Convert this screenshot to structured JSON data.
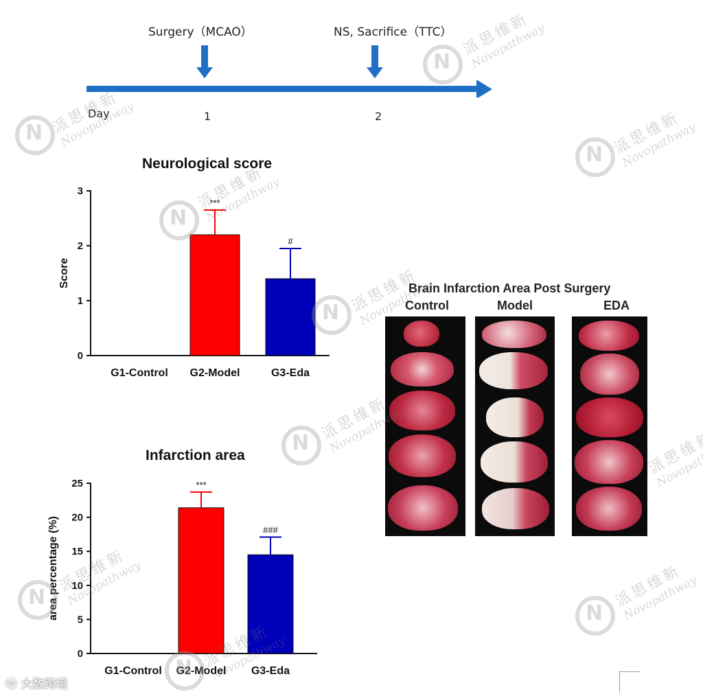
{
  "timeline": {
    "events": [
      {
        "label": "Surgery（MCAO）",
        "day": "1"
      },
      {
        "label": "NS, Sacrifice（TTC）",
        "day": "2"
      }
    ],
    "axis_label": "Day",
    "color": "#1f6fc5"
  },
  "chart_data": [
    {
      "type": "bar",
      "title": "Neurological score",
      "xlabel": "",
      "ylabel": "Score",
      "categories": [
        "G1-Control",
        "G2-Model",
        "G3-Eda"
      ],
      "values": [
        0,
        2.2,
        1.4
      ],
      "errors": [
        0,
        0.45,
        0.55
      ],
      "annotations": [
        "",
        "***",
        "#"
      ],
      "colors": [
        "#ff0000",
        "#ff0000",
        "#0000b8"
      ],
      "ylim": [
        0,
        3
      ],
      "yticks": [
        "0",
        "1",
        "2",
        "3"
      ],
      "grid": false
    },
    {
      "type": "bar",
      "title": "Infarction area",
      "xlabel": "",
      "ylabel": "area percentage (%)",
      "categories": [
        "G1-Control",
        "G2-Model",
        "G3-Eda"
      ],
      "values": [
        0,
        21.4,
        14.5
      ],
      "errors": [
        0,
        2.3,
        2.6
      ],
      "annotations": [
        "",
        "***",
        "###"
      ],
      "colors": [
        "#ff0000",
        "#ff0000",
        "#0000b8"
      ],
      "ylim": [
        0,
        25
      ],
      "yticks": [
        "0",
        "5",
        "10",
        "15",
        "20",
        "25"
      ],
      "grid": false
    }
  ],
  "brain_panel": {
    "title": "Brain Infarction Area Post Surgery",
    "columns": [
      "Control",
      "Model",
      "EDA"
    ]
  },
  "watermark": {
    "cn": "派思维新",
    "en": "Novopathway"
  },
  "source_tag": "大数跨境"
}
